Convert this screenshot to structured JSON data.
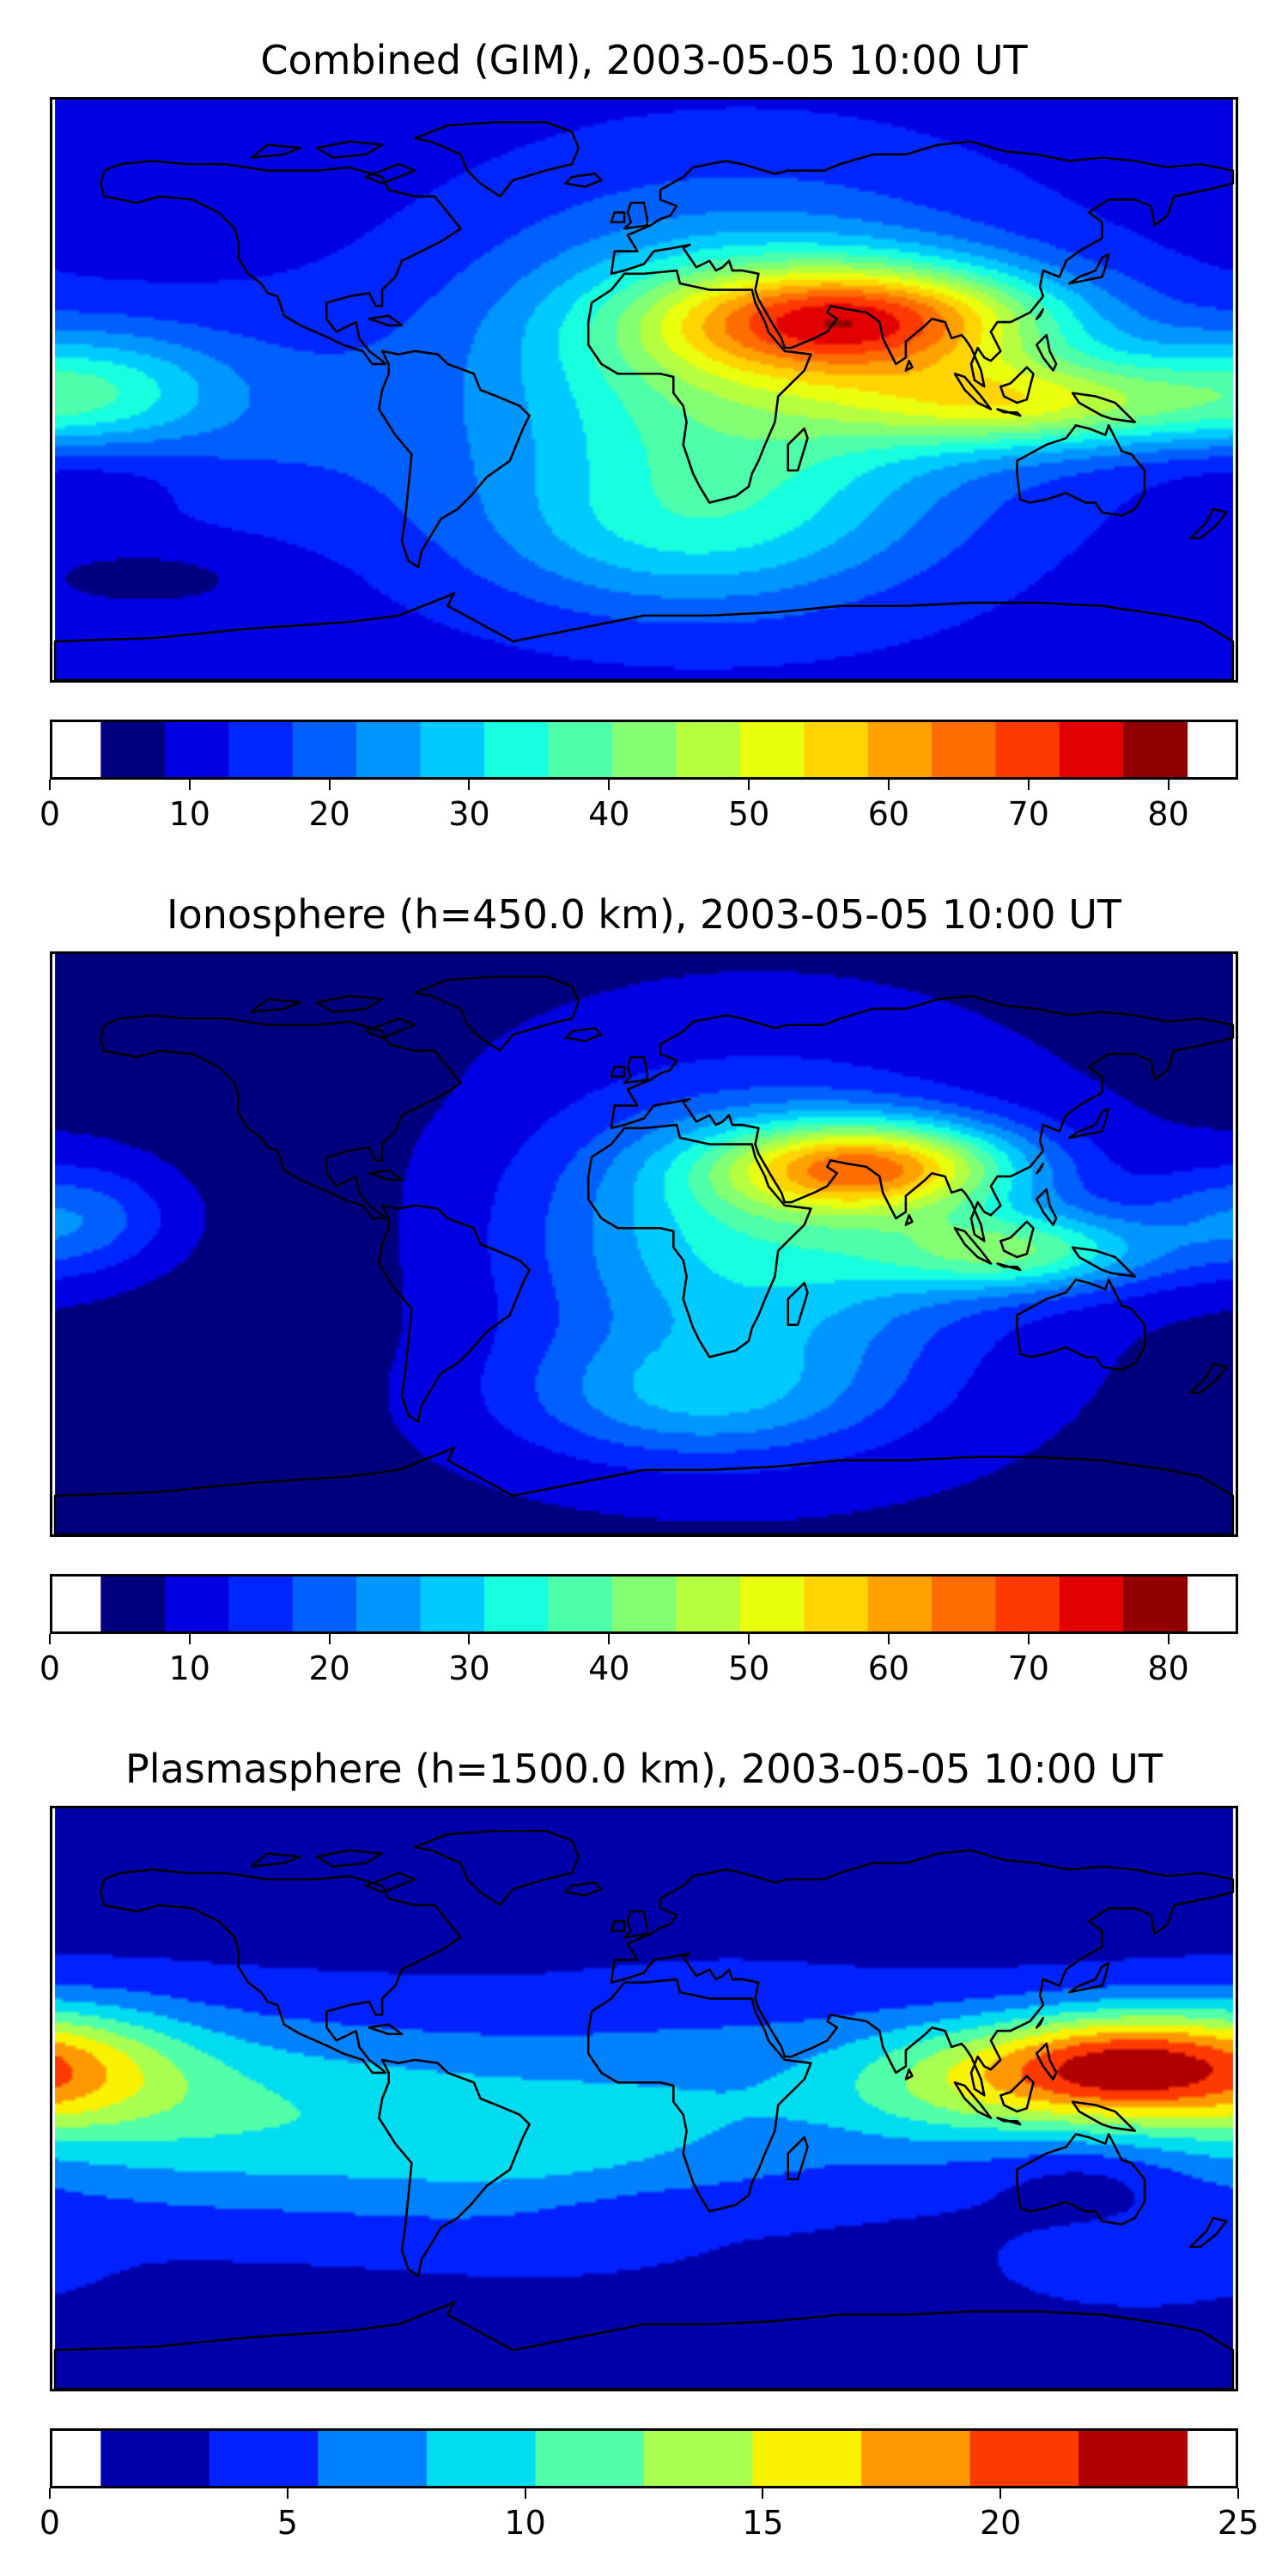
{
  "chart_data": [
    {
      "type": "heatmap",
      "title": "Combined (GIM), 2003-05-05 10:00 UT",
      "colorbar": {
        "levels": [
          0,
          5,
          10,
          15,
          20,
          25,
          30,
          35,
          40,
          45,
          50,
          55,
          60,
          65,
          70,
          75,
          80,
          85
        ],
        "tick_values": [
          0,
          10,
          20,
          30,
          40,
          50,
          60,
          70,
          80
        ],
        "tick_labels": [
          "0",
          "10",
          "20",
          "30",
          "40",
          "50",
          "60",
          "70",
          "80"
        ],
        "colors": [
          "#00007f",
          "#0000e2",
          "#0026ff",
          "#0060ff",
          "#0096ff",
          "#00caff",
          "#17ffdf",
          "#4dffaa",
          "#83ff73",
          "#b6ff40",
          "#eaff0d",
          "#ffd400",
          "#ffa100",
          "#ff6d00",
          "#ff3a00",
          "#e20000",
          "#900000"
        ]
      },
      "field": {
        "base": 8,
        "blobs": [
          {
            "lon": 68,
            "lat": 22,
            "amp": 48,
            "slon": 42,
            "slat": 12
          },
          {
            "lon": 118,
            "lat": -4,
            "amp": 34,
            "slon": 38,
            "slat": 10
          },
          {
            "lon": 30,
            "lat": 5,
            "amp": 32,
            "slon": 55,
            "slat": 35
          },
          {
            "lon": 10,
            "lat": -45,
            "amp": 14,
            "slon": 45,
            "slat": 18
          },
          {
            "lon": -170,
            "lat": 0,
            "amp": 22,
            "slon": 30,
            "slat": 14
          },
          {
            "lon": -110,
            "lat": -10,
            "amp": 6,
            "slon": 40,
            "slat": 25
          }
        ],
        "lows": [
          {
            "lon": -170,
            "lat": -25,
            "amp": 5,
            "slon": 25,
            "slat": 8
          },
          {
            "lon": -150,
            "lat": -58,
            "amp": 5,
            "slon": 30,
            "slat": 8
          }
        ]
      }
    },
    {
      "type": "heatmap",
      "title": "Ionosphere  (h=450.0 km), 2003-05-05 10:00 UT",
      "colorbar": {
        "levels": [
          0,
          5,
          10,
          15,
          20,
          25,
          30,
          35,
          40,
          45,
          50,
          55,
          60,
          65,
          70,
          75,
          80,
          85
        ],
        "tick_values": [
          0,
          10,
          20,
          30,
          40,
          50,
          60,
          70,
          80
        ],
        "tick_labels": [
          "0",
          "10",
          "20",
          "30",
          "40",
          "50",
          "60",
          "70",
          "80"
        ],
        "colors": [
          "#00007f",
          "#0000e2",
          "#0026ff",
          "#0060ff",
          "#0096ff",
          "#00caff",
          "#17ffdf",
          "#4dffaa",
          "#83ff73",
          "#b6ff40",
          "#eaff0d",
          "#ffd400",
          "#ffa100",
          "#ff6d00",
          "#ff3a00",
          "#e20000",
          "#900000"
        ]
      },
      "field": {
        "base": 4,
        "blobs": [
          {
            "lon": 70,
            "lat": 24,
            "amp": 48,
            "slon": 32,
            "slat": 10
          },
          {
            "lon": 115,
            "lat": -2,
            "amp": 30,
            "slon": 30,
            "slat": 9
          },
          {
            "lon": 35,
            "lat": 2,
            "amp": 28,
            "slon": 48,
            "slat": 32
          },
          {
            "lon": 15,
            "lat": -48,
            "amp": 16,
            "slon": 40,
            "slat": 14
          },
          {
            "lon": -175,
            "lat": 8,
            "amp": 16,
            "slon": 22,
            "slat": 12
          }
        ],
        "lows": [
          {
            "lon": -120,
            "lat": 0,
            "amp": 2,
            "slon": 40,
            "slat": 40
          },
          {
            "lon": -100,
            "lat": 50,
            "amp": 2,
            "slon": 20,
            "slat": 8
          }
        ]
      }
    },
    {
      "type": "heatmap",
      "title": "Plasmasphere (h=1500.0 km), 2003-05-05 10:00 UT",
      "colorbar": {
        "levels": [
          0,
          2.5,
          5,
          7.5,
          10,
          12.5,
          15,
          17.5,
          20,
          22.5,
          25
        ],
        "tick_values": [
          0,
          5,
          10,
          15,
          20,
          25
        ],
        "tick_labels": [
          "0",
          "5",
          "10",
          "15",
          "20",
          "25"
        ],
        "colors": [
          "#0000aa",
          "#0022ff",
          "#0082ff",
          "#00dcf0",
          "#50ffa8",
          "#a8ff50",
          "#f8f200",
          "#ff9800",
          "#ff3a00",
          "#b00000"
        ]
      },
      "field": {
        "base": 1.5,
        "blobs": [
          {
            "lon": -120,
            "lat": -5,
            "amp": 8,
            "slon": 70,
            "slat": 22
          },
          {
            "lon": -180,
            "lat": 10,
            "amp": 10,
            "slon": 30,
            "slat": 14
          },
          {
            "lon": 140,
            "lat": 10,
            "amp": 14,
            "slon": 28,
            "slat": 12
          },
          {
            "lon": 95,
            "lat": 5,
            "amp": 8,
            "slon": 30,
            "slat": 14
          },
          {
            "lon": 30,
            "lat": 0,
            "amp": 4,
            "slon": 45,
            "slat": 25
          },
          {
            "lon": -30,
            "lat": -20,
            "amp": 3,
            "slon": 40,
            "slat": 20
          },
          {
            "lon": 150,
            "lat": -52,
            "amp": 3,
            "slon": 25,
            "slat": 8
          }
        ],
        "lows": [
          {
            "lon": 135,
            "lat": -25,
            "amp": 2,
            "slon": 18,
            "slat": 8
          },
          {
            "lon": 0,
            "lat": -35,
            "amp": 1.5,
            "slon": 30,
            "slat": 8
          }
        ]
      }
    }
  ]
}
